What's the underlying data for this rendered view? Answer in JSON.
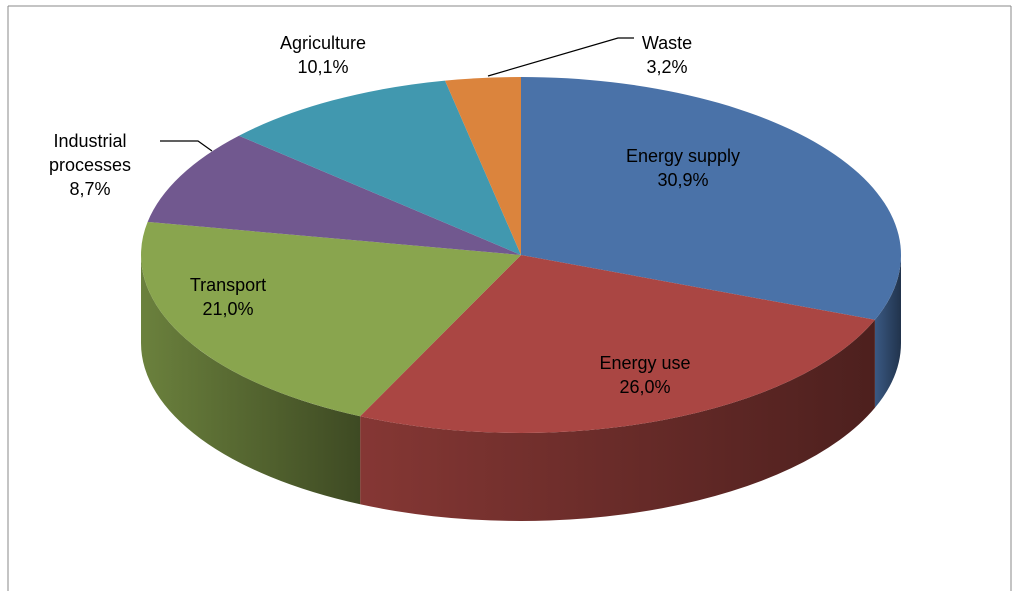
{
  "chart_data": {
    "type": "pie",
    "categories": [
      "Energy supply",
      "Energy use",
      "Transport",
      "Industrial processes",
      "Agriculture",
      "Waste"
    ],
    "values": [
      30.9,
      26.0,
      21.0,
      8.7,
      10.1,
      3.2
    ],
    "value_labels": [
      "30,9%",
      "26,0%",
      "21,0%",
      "8,7%",
      "10,1%",
      "3,2%"
    ],
    "colors": [
      "#4a72a8",
      "#aa4643",
      "#89a54e",
      "#71588f",
      "#4198af",
      "#db843d"
    ]
  }
}
